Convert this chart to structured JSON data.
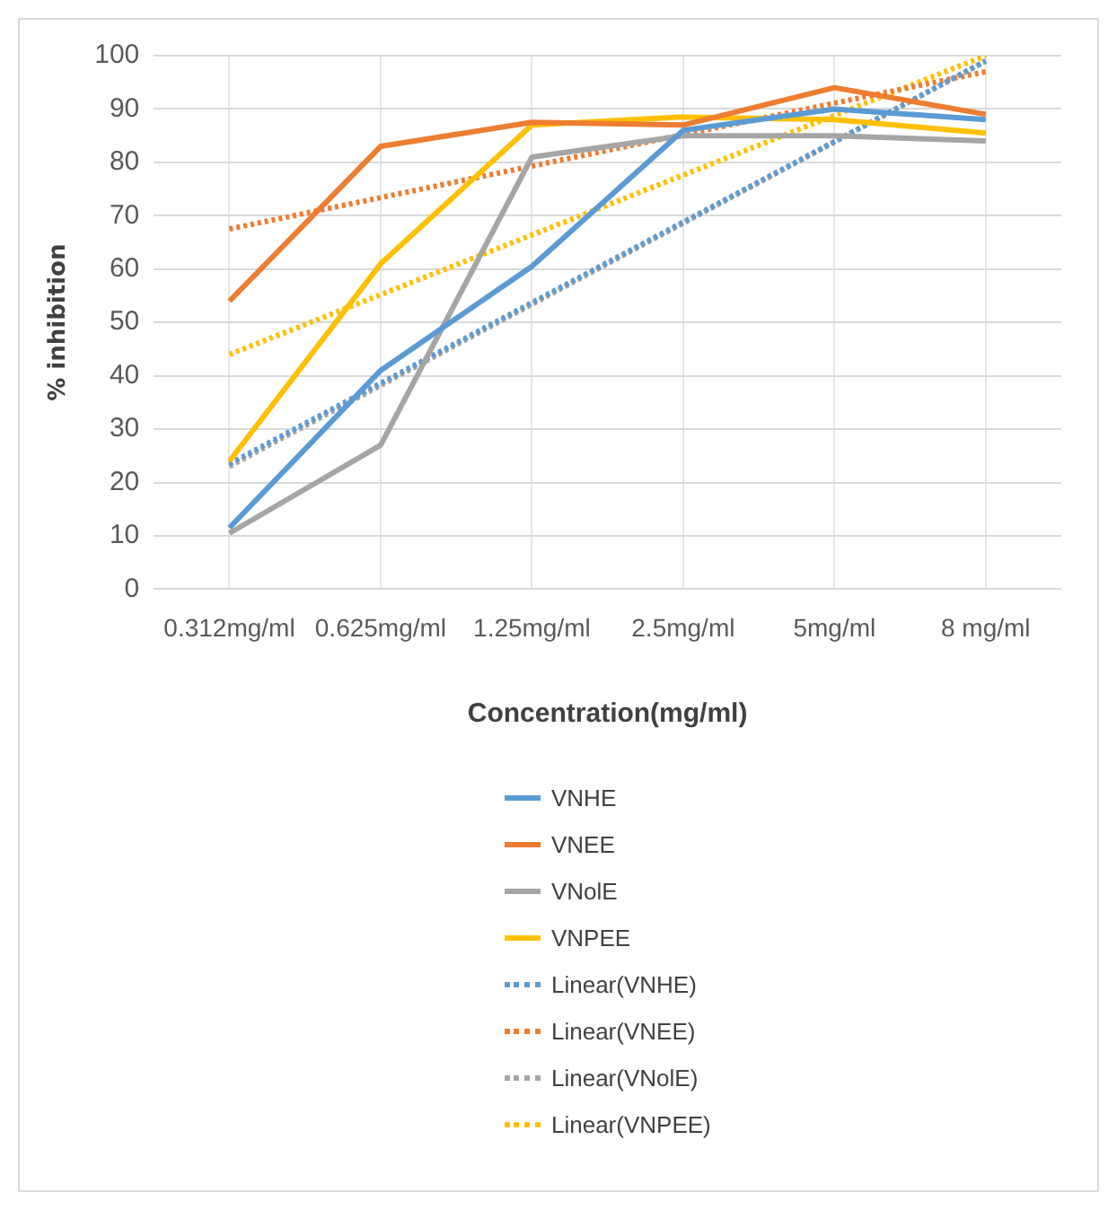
{
  "chart_data": {
    "type": "line",
    "xlabel": "Concentration(mg/ml)",
    "ylabel": "% inhibition",
    "categories": [
      "0.312mg/ml",
      "0.625mg/ml",
      "1.25mg/ml",
      "2.5mg/ml",
      "5mg/ml",
      "8 mg/ml"
    ],
    "series": [
      {
        "name": "VNHE",
        "color": "#5b9bd5",
        "values": [
          11.5,
          41,
          60.5,
          86,
          90,
          88
        ]
      },
      {
        "name": "VNEE",
        "color": "#ed7d31",
        "values": [
          54,
          83,
          87.5,
          87,
          94,
          89
        ]
      },
      {
        "name": "VNolE",
        "color": "#a5a5a5",
        "values": [
          10.5,
          27,
          81,
          85,
          85,
          84
        ]
      },
      {
        "name": "VNPEE",
        "color": "#ffc000",
        "values": [
          24,
          61,
          87,
          88.5,
          88,
          85.5
        ]
      },
      {
        "name": "Linear(VNHE)",
        "color": "#5b9bd5",
        "line_style": "dotted",
        "values": [
          23.5,
          38.6,
          53.7,
          68.8,
          83.9,
          99
        ]
      },
      {
        "name": "Linear(VNEE)",
        "color": "#ed7d31",
        "line_style": "dotted",
        "values": [
          67.5,
          73.4,
          79.3,
          85.2,
          91.1,
          97
        ]
      },
      {
        "name": "Linear(VNolE)",
        "color": "#a5a5a5",
        "line_style": "dotted",
        "values": [
          23,
          38.2,
          53.4,
          68.6,
          83.8,
          99
        ]
      },
      {
        "name": "Linear(VNPEE)",
        "color": "#ffc000",
        "line_style": "dotted",
        "values": [
          44,
          55.2,
          66.4,
          77.6,
          88.8,
          100
        ]
      }
    ],
    "ylim": [
      0,
      100
    ],
    "yticks": [
      0,
      10,
      20,
      30,
      40,
      50,
      60,
      70,
      80,
      90,
      100
    ],
    "grid": true,
    "legend": "bottom",
    "marker": "none",
    "line_style": "solid"
  }
}
